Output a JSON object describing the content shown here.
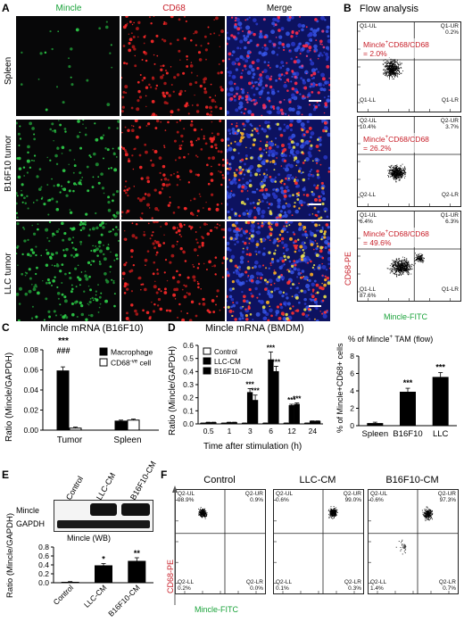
{
  "panelA": {
    "label": "A",
    "columns": [
      "Mincle",
      "CD68",
      "Merge"
    ],
    "rows": [
      "Spleen",
      "B16F10 tumor",
      "LLC tumor"
    ]
  },
  "panelB": {
    "label": "B",
    "title": "Flow analysis",
    "plots": [
      {
        "ul": "Q1-UL",
        "ul_val": "",
        "ur": "Q1-UR",
        "ur_val": "0.2%",
        "ll": "Q1-LL",
        "ll_val": "",
        "lr": "Q1-LR",
        "lr_val": "",
        "pct_prefix": "Mincle",
        "pct_sup": "+",
        "pct_suffix": "CD68/CD68",
        "pct_val": "= 2.0%"
      },
      {
        "ul": "Q2-UL",
        "ul_val": "10.4%",
        "ur": "Q2-UR",
        "ur_val": "3.7%",
        "ll": "Q2-LL",
        "ll_val": "",
        "lr": "Q2-LR",
        "lr_val": "",
        "pct_prefix": "Mincle",
        "pct_sup": "+",
        "pct_suffix": "CD68/CD68",
        "pct_val": "= 26.2%"
      },
      {
        "ul": "Q1-UL",
        "ul_val": "6.4%",
        "ur": "Q1-UR",
        "ur_val": "6.3%",
        "ll": "Q1-LL",
        "ll_val": "87.6%",
        "lr": "Q1-LR",
        "lr_val": "",
        "pct_prefix": "Mincle",
        "pct_sup": "+",
        "pct_suffix": "CD68/CD68",
        "pct_val": "= 49.6%"
      }
    ],
    "ylabel": "CD68-PE",
    "xlabel": "Mincle-FITC"
  },
  "panelC": {
    "label": "C",
    "title": "Mincle mRNA (B16F10)",
    "ylabel": "Ratio (Mincle/GAPDH)",
    "legend": [
      {
        "label": "Macrophage",
        "color": "#000000"
      },
      {
        "label": "CD68",
        "sup": "-ve",
        "suffix": " cell",
        "color": "#ffffff"
      }
    ],
    "annot": [
      "***",
      "###"
    ]
  },
  "panelD": {
    "label": "D",
    "title": "Mincle mRNA (BMDM)",
    "ylabel": "Ratio (Mincle/GAPDH)",
    "xlabel": "Time after stimulation (h)",
    "legend": [
      {
        "label": "Control",
        "color": "#ffffff"
      },
      {
        "label": "LLC-CM",
        "color": "#000000"
      },
      {
        "label": "B16F10-CM",
        "color": "#000000"
      }
    ],
    "sig": "***"
  },
  "panelD2": {
    "title_prefix": "% of Mincle",
    "title_sup": "+",
    "title_suffix": " TAM (flow)",
    "ylabel": "% of Mincle+CD68+ cells",
    "sig": "***"
  },
  "panelE": {
    "label": "E",
    "lanes": [
      "Control",
      "LLC-CM",
      "B16F10-CM"
    ],
    "bands": [
      "Mincle",
      "GAPDH"
    ],
    "title": "Mincle (WB)",
    "ylabel": "Ratio (Mincle/GAPDH)",
    "sigs": [
      "*",
      "**"
    ]
  },
  "panelF": {
    "label": "F",
    "columns": [
      "Control",
      "LLC-CM",
      "B16F10-CM"
    ],
    "plots": [
      {
        "ul": "Q2-UL",
        "ul_val": "98.9%",
        "ur": "Q2-UR",
        "ur_val": "0.9%",
        "ll": "Q2-LL",
        "ll_val": "0.2%",
        "lr": "Q2-LR",
        "lr_val": "0.0%"
      },
      {
        "ul": "Q2-UL",
        "ul_val": "0.6%",
        "ur": "Q2-UR",
        "ur_val": "99.0%",
        "ll": "Q2-LL",
        "ll_val": "0.1%",
        "lr": "Q2-LR",
        "lr_val": "0.3%"
      },
      {
        "ul": "Q2-UL",
        "ul_val": "0.6%",
        "ur": "Q2-UR",
        "ur_val": "97.3%",
        "ll": "Q2-LL",
        "ll_val": "1.4%",
        "lr": "Q2-LR",
        "lr_val": "0.7%"
      }
    ],
    "ylabel": "CD68-PE",
    "xlabel": "Mincle-FITC"
  },
  "chart_data": [
    {
      "type": "bar",
      "categories": [
        "Tumor",
        "Spleen"
      ],
      "ylim": [
        0,
        0.08
      ],
      "yticks": [
        "0.00",
        "0.02",
        "0.04",
        "0.06",
        "0.08"
      ],
      "series": [
        {
          "name": "Macrophage",
          "values": [
            0.059,
            0.009
          ],
          "err": [
            0.004,
            0.001
          ]
        },
        {
          "name": "CD68-ve cell",
          "values": [
            0.002,
            0.01
          ],
          "err": [
            0.001,
            0.001
          ]
        }
      ]
    },
    {
      "type": "bar",
      "categories": [
        "0.5",
        "1",
        "3",
        "6",
        "12",
        "24"
      ],
      "ylim": [
        0,
        0.6
      ],
      "yticks": [
        "0.0",
        "0.1",
        "0.2",
        "0.3",
        "0.4",
        "0.5",
        "0.6"
      ],
      "series": [
        {
          "name": "Control",
          "values": [
            0.005,
            0.005,
            0.005,
            0.005,
            0.005,
            0.005
          ],
          "err": [
            0.002,
            0.002,
            0.002,
            0.002,
            0.002,
            0.002
          ]
        },
        {
          "name": "LLC-CM",
          "values": [
            0.01,
            0.01,
            0.24,
            0.49,
            0.14,
            0.02
          ],
          "err": [
            0.003,
            0.003,
            0.03,
            0.06,
            0.01,
            0.003
          ]
        },
        {
          "name": "B16F10-CM",
          "values": [
            0.01,
            0.01,
            0.18,
            0.4,
            0.15,
            0.02
          ],
          "err": [
            0.003,
            0.003,
            0.04,
            0.04,
            0.01,
            0.003
          ]
        }
      ]
    },
    {
      "type": "bar",
      "categories": [
        "Spleen",
        "B16F10",
        "LLC"
      ],
      "ylim": [
        0,
        8
      ],
      "yticks": [
        "0",
        "2",
        "4",
        "6",
        "8"
      ],
      "values": [
        0.3,
        3.9,
        5.6
      ],
      "err": [
        0.1,
        0.4,
        0.5
      ]
    },
    {
      "type": "bar",
      "categories": [
        "Control",
        "LLC-CM",
        "B16F10-CM"
      ],
      "ylim": [
        0,
        0.8
      ],
      "yticks": [
        "0.0",
        "0.2",
        "0.4",
        "0.6",
        "0.8"
      ],
      "values": [
        0.02,
        0.39,
        0.49
      ],
      "err": [
        0.005,
        0.04,
        0.07
      ]
    }
  ]
}
